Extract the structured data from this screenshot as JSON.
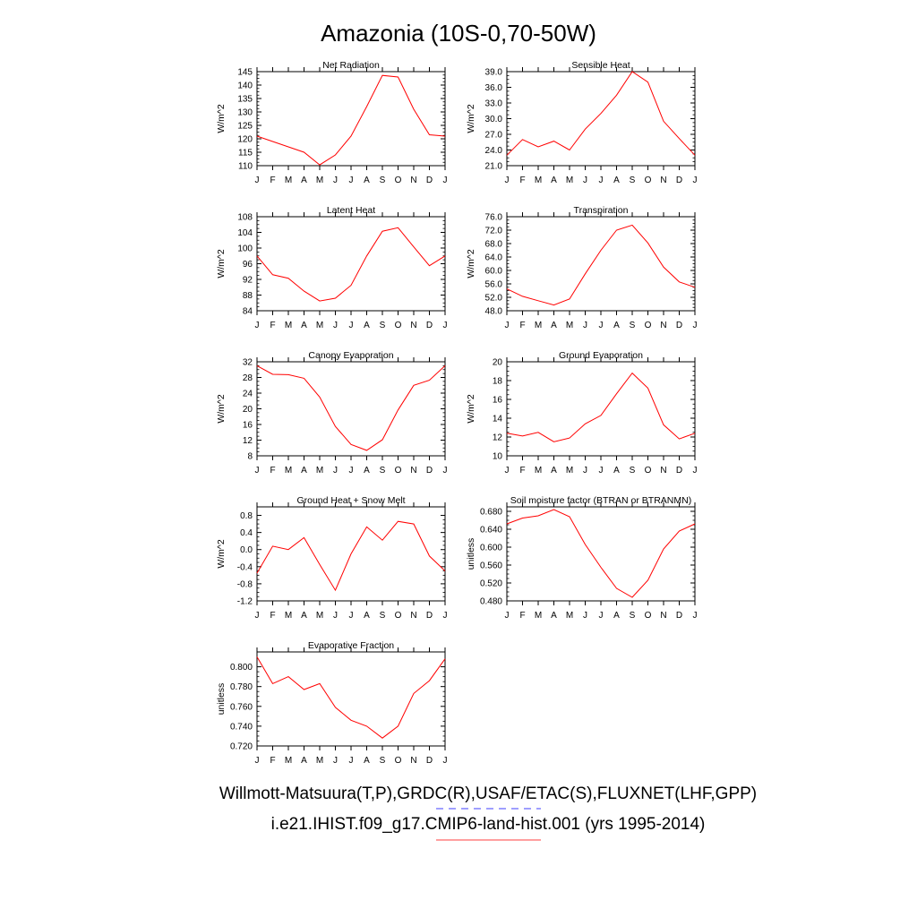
{
  "title": "Amazonia (10S-0,70-50W)",
  "footer": {
    "line1": "Willmott-Matsuura(T,P),GRDC(R),USAF/ETAC(S),FLUXNET(LHF,GPP)",
    "line2": "i.e21.IHIST.f09_g17.CMIP6-land-hist.001 (yrs 1995-2014)"
  },
  "colors": {
    "line": "#ff0000",
    "obs_dash": "#6666ff",
    "model_line": "#ff6666"
  },
  "chart_data": [
    {
      "type": "line",
      "title": "Net Radiation",
      "xlabel": "",
      "ylabel": "W/m^2",
      "x": [
        "J",
        "F",
        "M",
        "A",
        "M",
        "J",
        "J",
        "A",
        "S",
        "O",
        "N",
        "D",
        "J"
      ],
      "ylim": [
        110,
        145
      ],
      "ticks": [
        110,
        115,
        120,
        125,
        130,
        135,
        140,
        145
      ],
      "tick_labels": [
        "110",
        "115",
        "120",
        "125",
        "130",
        "135",
        "140",
        "145"
      ],
      "series": [
        {
          "values": [
            121,
            119,
            117,
            115,
            110.3,
            114,
            121,
            132,
            143.6,
            143,
            131,
            121.5,
            121
          ]
        }
      ]
    },
    {
      "type": "line",
      "title": "Sensible Heat",
      "xlabel": "",
      "ylabel": "W/m^2",
      "x": [
        "J",
        "F",
        "M",
        "A",
        "M",
        "J",
        "J",
        "A",
        "S",
        "O",
        "N",
        "D",
        "J"
      ],
      "ylim": [
        21,
        39
      ],
      "ticks": [
        21,
        24,
        27,
        30,
        33,
        36,
        39
      ],
      "tick_labels": [
        "21.0",
        "24.0",
        "27.0",
        "30.0",
        "33.0",
        "36.0",
        "39.0"
      ],
      "series": [
        {
          "values": [
            23,
            26,
            24.6,
            25.7,
            24,
            28,
            31,
            34.5,
            39,
            37,
            29.5,
            26.2,
            23
          ]
        }
      ]
    },
    {
      "type": "line",
      "title": "Latent Heat",
      "xlabel": "",
      "ylabel": "W/m^2",
      "x": [
        "J",
        "F",
        "M",
        "A",
        "M",
        "J",
        "J",
        "A",
        "S",
        "O",
        "N",
        "D",
        "J"
      ],
      "ylim": [
        84,
        108
      ],
      "ticks": [
        84,
        88,
        92,
        96,
        100,
        104,
        108
      ],
      "tick_labels": [
        "84",
        "88",
        "92",
        "96",
        "100",
        "104",
        "108"
      ],
      "series": [
        {
          "values": [
            98,
            93.2,
            92.3,
            89,
            86.5,
            87.2,
            90.5,
            98,
            104.3,
            105.2,
            100.3,
            95.5,
            98
          ]
        }
      ]
    },
    {
      "type": "line",
      "title": "Transpiration",
      "xlabel": "",
      "ylabel": "W/m^2",
      "x": [
        "J",
        "F",
        "M",
        "A",
        "M",
        "J",
        "J",
        "A",
        "S",
        "O",
        "N",
        "D",
        "J"
      ],
      "ylim": [
        48,
        76
      ],
      "ticks": [
        48,
        52,
        56,
        60,
        64,
        68,
        72,
        76
      ],
      "tick_labels": [
        "48.0",
        "52.0",
        "56.0",
        "60.0",
        "64.0",
        "68.0",
        "72.0",
        "76.0"
      ],
      "series": [
        {
          "values": [
            54.5,
            52.3,
            51,
            49.7,
            51.5,
            59,
            66,
            72,
            73.5,
            68.2,
            61,
            56.6,
            55
          ]
        }
      ]
    },
    {
      "type": "line",
      "title": "Canopy Evaporation",
      "xlabel": "",
      "ylabel": "W/m^2",
      "x": [
        "J",
        "F",
        "M",
        "A",
        "M",
        "J",
        "J",
        "A",
        "S",
        "O",
        "N",
        "D",
        "J"
      ],
      "ylim": [
        8,
        32
      ],
      "ticks": [
        8,
        12,
        16,
        20,
        24,
        28,
        32
      ],
      "tick_labels": [
        "8",
        "12",
        "16",
        "20",
        "24",
        "28",
        "32"
      ],
      "series": [
        {
          "values": [
            31,
            28.8,
            28.7,
            27.8,
            23,
            15.5,
            10.9,
            9.4,
            12.1,
            19.7,
            26,
            27.3,
            31
          ]
        }
      ]
    },
    {
      "type": "line",
      "title": "Ground Evaporation",
      "xlabel": "",
      "ylabel": "W/m^2",
      "x": [
        "J",
        "F",
        "M",
        "A",
        "M",
        "J",
        "J",
        "A",
        "S",
        "O",
        "N",
        "D",
        "J"
      ],
      "ylim": [
        10,
        20
      ],
      "ticks": [
        10,
        12,
        14,
        16,
        18,
        20
      ],
      "tick_labels": [
        "10",
        "12",
        "14",
        "16",
        "18",
        "20"
      ],
      "series": [
        {
          "values": [
            12.4,
            12.1,
            12.5,
            11.5,
            11.9,
            13.4,
            14.3,
            16.6,
            18.8,
            17.2,
            13.3,
            11.8,
            12.4
          ]
        }
      ]
    },
    {
      "type": "line",
      "title": "Ground Heat + Snow Melt",
      "xlabel": "",
      "ylabel": "W/m^2",
      "x": [
        "J",
        "F",
        "M",
        "A",
        "M",
        "J",
        "J",
        "A",
        "S",
        "O",
        "N",
        "D",
        "J"
      ],
      "ylim": [
        -1.2,
        1.0
      ],
      "ticks": [
        -1.2,
        -0.8,
        -0.4,
        0,
        0.4,
        0.8
      ],
      "tick_labels": [
        "-1.2",
        "-0.8",
        "-0.4",
        "0.0",
        "0.4",
        "0.8"
      ],
      "series": [
        {
          "values": [
            -0.55,
            0.08,
            0,
            0.28,
            -0.35,
            -0.95,
            -0.1,
            0.53,
            0.22,
            0.66,
            0.6,
            -0.15,
            -0.5
          ]
        }
      ]
    },
    {
      "type": "line",
      "title": "Soil moisture factor (BTRAN or BTRANMN)",
      "xlabel": "",
      "ylabel": "unitless",
      "x": [
        "J",
        "F",
        "M",
        "A",
        "M",
        "J",
        "J",
        "A",
        "S",
        "O",
        "N",
        "D",
        "J"
      ],
      "ylim": [
        0.48,
        0.69
      ],
      "ticks": [
        0.48,
        0.52,
        0.56,
        0.6,
        0.64,
        0.68
      ],
      "tick_labels": [
        "0.480",
        "0.520",
        "0.560",
        "0.600",
        "0.640",
        "0.680"
      ],
      "series": [
        {
          "values": [
            0.652,
            0.665,
            0.67,
            0.684,
            0.668,
            0.606,
            0.555,
            0.508,
            0.488,
            0.526,
            0.596,
            0.636,
            0.652
          ]
        }
      ]
    },
    {
      "type": "line",
      "title": "Evaporative Fraction",
      "xlabel": "",
      "ylabel": "unitless",
      "x": [
        "J",
        "F",
        "M",
        "A",
        "M",
        "J",
        "J",
        "A",
        "S",
        "O",
        "N",
        "D",
        "J"
      ],
      "ylim": [
        0.72,
        0.815
      ],
      "ticks": [
        0.72,
        0.74,
        0.76,
        0.78,
        0.8
      ],
      "tick_labels": [
        "0.720",
        "0.740",
        "0.760",
        "0.780",
        "0.800"
      ],
      "series": [
        {
          "values": [
            0.81,
            0.783,
            0.79,
            0.777,
            0.783,
            0.759,
            0.746,
            0.74,
            0.728,
            0.74,
            0.773,
            0.786,
            0.808
          ]
        }
      ]
    }
  ]
}
